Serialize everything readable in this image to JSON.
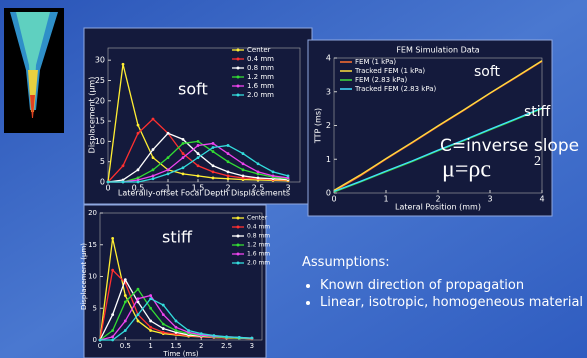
{
  "chart_data": [
    {
      "type": "line",
      "title": "Laterally-offset Focal Depth Displacements",
      "ylabel": "Displacement (µm)",
      "markers": true,
      "x": [
        0,
        0.25,
        0.5,
        0.75,
        1,
        1.25,
        1.5,
        1.75,
        2,
        2.25,
        2.5,
        2.75,
        3
      ],
      "xlim": [
        0,
        3.2
      ],
      "xticks": [
        0,
        0.5,
        1,
        1.5,
        2,
        2.5,
        3
      ],
      "ylim": [
        0,
        33
      ],
      "yticks": [
        0,
        5,
        10,
        15,
        20,
        25,
        30
      ],
      "annotations": [
        "soft"
      ],
      "series": [
        {
          "name": "Center",
          "color": "#ffee33",
          "values": [
            0,
            29,
            14,
            6,
            3,
            2,
            1.5,
            1,
            0.8,
            0.6,
            0.5,
            0.4,
            0.3
          ]
        },
        {
          "name": "0.4 mm",
          "color": "#ff3030",
          "values": [
            0,
            4,
            12,
            15.5,
            12,
            7,
            4,
            2.5,
            1.5,
            1,
            0.8,
            0.6,
            0.5
          ]
        },
        {
          "name": "0.8 mm",
          "color": "#ffffff",
          "values": [
            0,
            0.5,
            3,
            8,
            12,
            10.5,
            7,
            4,
            2.5,
            1.5,
            1,
            0.8,
            0.6
          ]
        },
        {
          "name": "1.2 mm",
          "color": "#33dd33",
          "values": [
            0,
            0,
            1,
            3,
            6,
            9.5,
            10,
            7.5,
            5,
            3,
            2,
            1.2,
            0.8
          ]
        },
        {
          "name": "1.6 mm",
          "color": "#ee44ee",
          "values": [
            0,
            0,
            0.5,
            1.5,
            3,
            6,
            9,
            9.5,
            7,
            4.5,
            2.5,
            1.5,
            1
          ]
        },
        {
          "name": "2.0 mm",
          "color": "#33dddd",
          "values": [
            0,
            0,
            0,
            0.8,
            2,
            3.5,
            6,
            8.5,
            9,
            7,
            4.5,
            2.5,
            1.5
          ]
        }
      ]
    },
    {
      "type": "line",
      "xlabel": "Time (ms)",
      "ylabel": "Displacement (µm)",
      "markers": true,
      "x": [
        0,
        0.25,
        0.5,
        0.75,
        1,
        1.25,
        1.5,
        1.75,
        2,
        2.25,
        2.5,
        2.75,
        3
      ],
      "xlim": [
        0,
        3.2
      ],
      "xticks": [
        0,
        0.5,
        1,
        1.5,
        2,
        2.5,
        3
      ],
      "ylim": [
        0,
        20
      ],
      "yticks": [
        0,
        5,
        10,
        15,
        20
      ],
      "annotations": [
        "stiff"
      ],
      "series": [
        {
          "name": "Center",
          "color": "#ffee33",
          "values": [
            0,
            16,
            7,
            3,
            1.5,
            1,
            0.8,
            0.6,
            0.5,
            0.4,
            0.3,
            0.3,
            0.2
          ]
        },
        {
          "name": "0.4 mm",
          "color": "#ff3030",
          "values": [
            0,
            11,
            9,
            4,
            2,
            1.2,
            0.9,
            0.7,
            0.5,
            0.4,
            0.3,
            0.3,
            0.2
          ]
        },
        {
          "name": "0.8 mm",
          "color": "#ffffff",
          "values": [
            0,
            4,
            9.5,
            6,
            3,
            1.8,
            1.2,
            0.8,
            0.6,
            0.5,
            0.4,
            0.3,
            0.3
          ]
        },
        {
          "name": "1.2 mm",
          "color": "#33dd33",
          "values": [
            0,
            1.5,
            6,
            8,
            5,
            2.5,
            1.5,
            1,
            0.7,
            0.5,
            0.4,
            0.3,
            0.3
          ]
        },
        {
          "name": "1.6 mm",
          "color": "#ee44ee",
          "values": [
            0,
            0.5,
            3,
            6.5,
            7,
            4,
            2,
            1.2,
            0.8,
            0.6,
            0.5,
            0.4,
            0.3
          ]
        },
        {
          "name": "2.0 mm",
          "color": "#33dddd",
          "values": [
            0,
            0,
            1.5,
            4,
            6.5,
            5.5,
            3,
            1.5,
            1,
            0.7,
            0.5,
            0.4,
            0.3
          ]
        }
      ]
    },
    {
      "type": "line",
      "title": "FEM Simulation Data",
      "xlabel": "Lateral Position (mm)",
      "ylabel": "TTP (ms)",
      "markers": false,
      "x": [
        0,
        0.5,
        1,
        1.5,
        2,
        2.5,
        3,
        3.5,
        4
      ],
      "xlim": [
        0,
        4
      ],
      "xticks": [
        0,
        1,
        2,
        3,
        4
      ],
      "ylim": [
        0,
        4
      ],
      "yticks": [
        0,
        1,
        2,
        3,
        4
      ],
      "annotations": [
        "soft",
        "stiff",
        "C=inverse slope"
      ],
      "series": [
        {
          "name": "FEM (1 kPa)",
          "color": "#ff7030",
          "values": [
            0.05,
            0.5,
            1.0,
            1.48,
            1.97,
            2.45,
            2.95,
            3.42,
            3.9
          ]
        },
        {
          "name": "Tracked FEM (1 kPa)",
          "color": "#ffe040",
          "values": [
            0.08,
            0.53,
            1.02,
            1.5,
            1.99,
            2.47,
            2.96,
            3.44,
            3.92
          ]
        },
        {
          "name": "FEM (2.83 kPa)",
          "color": "#40dd40",
          "values": [
            0.03,
            0.32,
            0.63,
            0.93,
            1.25,
            1.55,
            1.87,
            2.18,
            2.5
          ]
        },
        {
          "name": "Tracked FEM (2.83 kPa)",
          "color": "#40e0ff",
          "values": [
            0.05,
            0.34,
            0.65,
            0.95,
            1.27,
            1.57,
            1.89,
            2.2,
            2.52
          ]
        }
      ]
    }
  ],
  "slide": {
    "formula": {
      "text": "μ=ρc",
      "superscript": "2"
    },
    "assumptions": {
      "heading": "Assumptions:",
      "items": [
        "Known direction of propagation",
        "Linear, isotropic, homogeneous material"
      ]
    }
  }
}
